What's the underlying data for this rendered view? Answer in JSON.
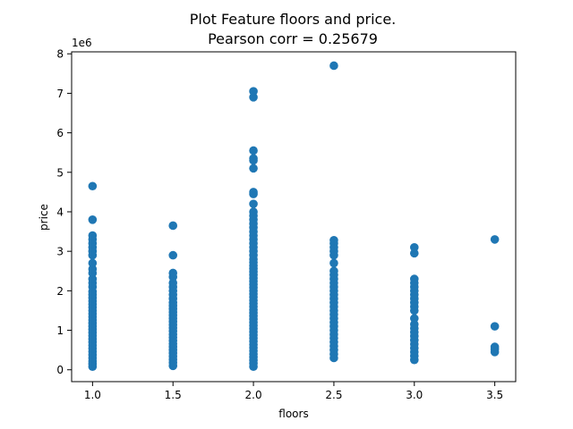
{
  "chart_data": {
    "type": "scatter",
    "title": [
      "Plot Feature floors and price.",
      "Pearson corr = 0.25679"
    ],
    "xlabel": "floors",
    "ylabel": "price",
    "y_offset_label": "1e6",
    "xlim": [
      0.87,
      3.63
    ],
    "ylim": [
      -0.3,
      8.05
    ],
    "x_ticks": [
      1.0,
      1.5,
      2.0,
      2.5,
      3.0,
      3.5
    ],
    "x_tick_labels": [
      "1.0",
      "1.5",
      "2.0",
      "2.5",
      "3.0",
      "3.5"
    ],
    "y_ticks": [
      0,
      1,
      2,
      3,
      4,
      5,
      6,
      7,
      8
    ],
    "y_tick_labels": [
      "0",
      "1",
      "2",
      "3",
      "4",
      "5",
      "6",
      "7",
      "8"
    ],
    "grid": false,
    "marker_color": "#1f77b4",
    "points": [
      {
        "x": 1.0,
        "y": [
          0.08,
          0.15,
          0.22,
          0.3,
          0.38,
          0.46,
          0.54,
          0.62,
          0.7,
          0.78,
          0.86,
          0.94,
          1.02,
          1.1,
          1.18,
          1.26,
          1.34,
          1.42,
          1.5,
          1.58,
          1.66,
          1.74,
          1.82,
          1.9,
          1.98,
          2.1,
          2.2,
          2.3,
          2.45,
          2.55,
          2.7,
          2.9,
          3.0,
          3.1,
          3.2,
          3.3,
          3.4,
          3.8,
          4.65
        ]
      },
      {
        "x": 1.5,
        "y": [
          0.1,
          0.18,
          0.26,
          0.34,
          0.42,
          0.5,
          0.58,
          0.66,
          0.74,
          0.82,
          0.9,
          0.98,
          1.06,
          1.14,
          1.22,
          1.3,
          1.38,
          1.46,
          1.54,
          1.62,
          1.7,
          1.8,
          1.9,
          2.0,
          2.1,
          2.2,
          2.35,
          2.45,
          2.9,
          3.65
        ]
      },
      {
        "x": 2.0,
        "y": [
          0.08,
          0.16,
          0.24,
          0.32,
          0.4,
          0.48,
          0.56,
          0.64,
          0.72,
          0.8,
          0.88,
          0.96,
          1.04,
          1.12,
          1.2,
          1.28,
          1.36,
          1.44,
          1.52,
          1.6,
          1.68,
          1.76,
          1.84,
          1.92,
          2.0,
          2.08,
          2.16,
          2.24,
          2.32,
          2.4,
          2.48,
          2.56,
          2.64,
          2.72,
          2.8,
          2.9,
          3.0,
          3.1,
          3.2,
          3.3,
          3.4,
          3.5,
          3.6,
          3.7,
          3.8,
          3.9,
          4.0,
          4.2,
          4.45,
          4.5,
          5.1,
          5.3,
          5.35,
          5.55,
          6.9,
          7.05
        ]
      },
      {
        "x": 2.5,
        "y": [
          0.3,
          0.4,
          0.5,
          0.6,
          0.7,
          0.8,
          0.9,
          1.0,
          1.1,
          1.2,
          1.3,
          1.4,
          1.5,
          1.6,
          1.7,
          1.8,
          1.9,
          2.0,
          2.1,
          2.2,
          2.3,
          2.4,
          2.5,
          2.7,
          2.9,
          3.0,
          3.1,
          3.2,
          3.28,
          7.7
        ]
      },
      {
        "x": 3.0,
        "y": [
          0.25,
          0.35,
          0.45,
          0.55,
          0.65,
          0.75,
          0.85,
          0.95,
          1.05,
          1.15,
          1.3,
          1.5,
          1.6,
          1.7,
          1.8,
          1.9,
          2.0,
          2.1,
          2.2,
          2.3,
          2.95,
          3.1
        ]
      },
      {
        "x": 3.5,
        "y": [
          0.45,
          0.52,
          0.58,
          1.1,
          3.3
        ]
      }
    ]
  }
}
